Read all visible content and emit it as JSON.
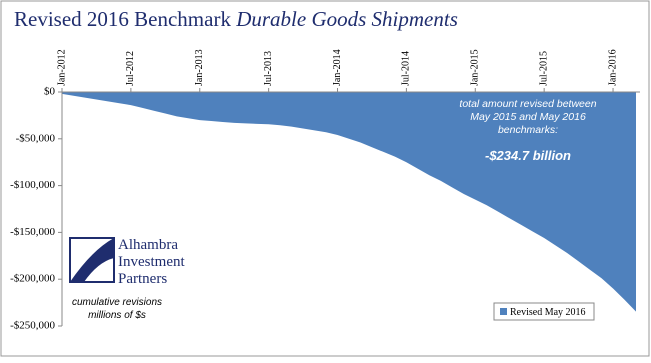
{
  "chart_data": {
    "type": "area",
    "title": "Revised 2016 Benchmark",
    "title_italic": "Durable Goods Shipments",
    "categories": [
      "Jan-2012",
      null,
      null,
      null,
      null,
      null,
      "Jul-2012",
      null,
      null,
      null,
      null,
      null,
      "Jan-2013",
      null,
      null,
      null,
      null,
      null,
      "Jul-2013",
      null,
      null,
      null,
      null,
      null,
      "Jan-2014",
      null,
      null,
      null,
      null,
      null,
      "Jul-2014",
      null,
      null,
      null,
      null,
      null,
      "Jan-2015",
      null,
      null,
      null,
      null,
      null,
      "Jul-2015",
      null,
      null,
      null,
      null,
      null,
      "Jan-2016",
      null,
      null
    ],
    "series": [
      {
        "name": "Revised May 2016",
        "color": "#4f81bd",
        "values": [
          -2000,
          -4000,
          -6000,
          -8000,
          -10000,
          -12000,
          -14000,
          -17000,
          -20000,
          -23000,
          -26000,
          -28000,
          -30000,
          -31000,
          -32000,
          -33000,
          -33500,
          -34000,
          -34500,
          -35500,
          -37000,
          -39000,
          -41000,
          -43000,
          -46000,
          -50000,
          -54000,
          -59000,
          -64000,
          -69000,
          -75000,
          -82000,
          -89000,
          -95000,
          -102000,
          -109000,
          -115000,
          -121000,
          -128000,
          -135000,
          -142000,
          -149000,
          -156000,
          -164000,
          -172000,
          -181000,
          -190000,
          -199000,
          -210000,
          -222000,
          -234700
        ]
      }
    ],
    "ylim": [
      -250000,
      0
    ],
    "yticks": [
      {
        "value": 0,
        "label": "$0"
      },
      {
        "value": -50000,
        "label": "-$50,000"
      },
      {
        "value": -100000,
        "label": "-$100,000"
      },
      {
        "value": -150000,
        "label": "-$150,000"
      },
      {
        "value": -200000,
        "label": "-$200,000"
      },
      {
        "value": -250000,
        "label": "-$250,000"
      }
    ],
    "annotation": [
      "total amount revised between",
      "May 2015 and May 2016",
      "benchmarks:",
      "-$234.7 billion"
    ],
    "logo": [
      "Alhambra",
      "Investment",
      "Partners"
    ],
    "note": [
      "cumulative revisions",
      "millions of $s"
    ],
    "legend_position": "lower right"
  }
}
